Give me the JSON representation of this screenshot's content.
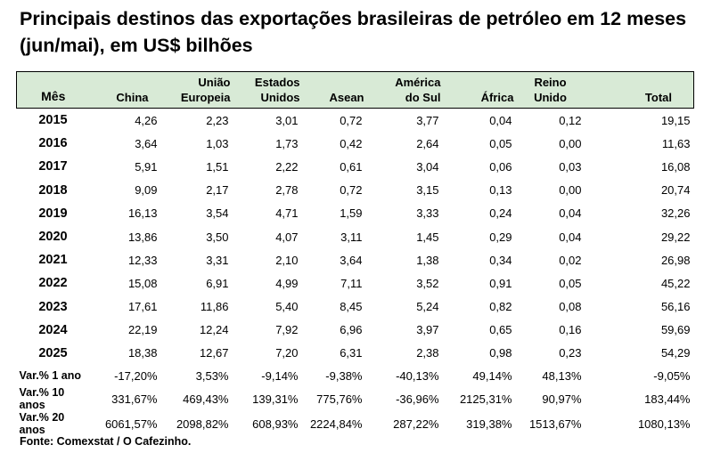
{
  "title": "Principais destinos das exportações brasileiras de petróleo em 12 meses (jun/mai), em US$ bilhões",
  "header": {
    "mes": "Mês",
    "china": "China",
    "ue_1": "União",
    "ue_2": "Europeia",
    "eua_1": "Estados",
    "eua_2": "Unidos",
    "asean": "Asean",
    "as_1": "América",
    "as_2": "do Sul",
    "africa": "África",
    "ru_1": "Reino",
    "ru_2": "Unido",
    "total": "Total"
  },
  "rows": [
    {
      "label": "2015",
      "values": [
        "4,26",
        "2,23",
        "3,01",
        "0,72",
        "3,77",
        "0,04",
        "0,12",
        "19,15"
      ]
    },
    {
      "label": "2016",
      "values": [
        "3,64",
        "1,03",
        "1,73",
        "0,42",
        "2,64",
        "0,05",
        "0,00",
        "11,63"
      ]
    },
    {
      "label": "2017",
      "values": [
        "5,91",
        "1,51",
        "2,22",
        "0,61",
        "3,04",
        "0,06",
        "0,03",
        "16,08"
      ]
    },
    {
      "label": "2018",
      "values": [
        "9,09",
        "2,17",
        "2,78",
        "0,72",
        "3,15",
        "0,13",
        "0,00",
        "20,74"
      ]
    },
    {
      "label": "2019",
      "values": [
        "16,13",
        "3,54",
        "4,71",
        "1,59",
        "3,33",
        "0,24",
        "0,04",
        "32,26"
      ]
    },
    {
      "label": "2020",
      "values": [
        "13,86",
        "3,50",
        "4,07",
        "3,11",
        "1,45",
        "0,29",
        "0,04",
        "29,22"
      ]
    },
    {
      "label": "2021",
      "values": [
        "12,33",
        "3,31",
        "2,10",
        "3,64",
        "1,38",
        "0,34",
        "0,02",
        "26,98"
      ]
    },
    {
      "label": "2022",
      "values": [
        "15,08",
        "6,91",
        "4,99",
        "7,11",
        "3,52",
        "0,91",
        "0,05",
        "45,22"
      ]
    },
    {
      "label": "2023",
      "values": [
        "17,61",
        "11,86",
        "5,40",
        "8,45",
        "5,24",
        "0,82",
        "0,08",
        "56,16"
      ]
    },
    {
      "label": "2024",
      "values": [
        "22,19",
        "12,24",
        "7,92",
        "6,96",
        "3,97",
        "0,65",
        "0,16",
        "59,69"
      ]
    },
    {
      "label": "2025",
      "values": [
        "18,38",
        "12,67",
        "7,20",
        "6,31",
        "2,38",
        "0,98",
        "0,23",
        "54,29"
      ]
    }
  ],
  "variations": [
    {
      "label": "Var.% 1 ano",
      "values": [
        "-17,20%",
        "3,53%",
        "-9,14%",
        "-9,38%",
        "-40,13%",
        "49,14%",
        "48,13%",
        "-9,05%"
      ]
    },
    {
      "label": "Var.% 10 anos",
      "values": [
        "331,67%",
        "469,43%",
        "139,31%",
        "775,76%",
        "-36,96%",
        "2125,31%",
        "90,97%",
        "183,44%"
      ]
    },
    {
      "label": "Var.% 20 anos",
      "values": [
        "6061,57%",
        "2098,82%",
        "608,93%",
        "2224,84%",
        "287,22%",
        "319,38%",
        "1513,67%",
        "1080,13%"
      ]
    }
  ],
  "source": "Fonte: Comexstat / O Cafezinho.",
  "colors": {
    "header_bg": "#d8ead6"
  }
}
